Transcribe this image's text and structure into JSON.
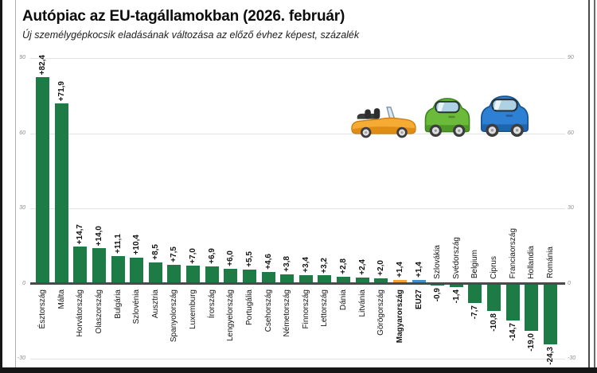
{
  "header": {
    "title": "Autópiac az EU-tagállamokban (2026. február)",
    "subtitle": "Új személygépkocsik eladásának változása az előző évhez képest, százalék"
  },
  "chart_data": {
    "type": "bar",
    "title": "Autópiac az EU-tagállamokban (2026. február)",
    "subtitle": "Új személygépkocsik eladásának változása az előző évhez képest, százalék",
    "unit": "%",
    "ylim": [
      -30,
      90
    ],
    "yticks": [
      90,
      60,
      30,
      0,
      -30
    ],
    "grid": true,
    "legend": "none",
    "categories": [
      "Észtország",
      "Málta",
      "Horvátország",
      "Olaszország",
      "Bulgária",
      "Szlovénia",
      "Ausztria",
      "Spanyolország",
      "Luxemburg",
      "Írország",
      "Lengyelország",
      "Portugália",
      "Csehország",
      "Németország",
      "Finnország",
      "Lettország",
      "Dánia",
      "Litvánia",
      "Görögország",
      "Magyarország",
      "EU27",
      "Szlovákia",
      "Svédország",
      "Belgium",
      "Ciprus",
      "Franciaország",
      "Hollandia",
      "Románia"
    ],
    "values": [
      82.4,
      71.9,
      14.7,
      14.0,
      11.1,
      10.4,
      8.5,
      7.5,
      7.0,
      6.9,
      6.0,
      5.5,
      4.6,
      3.8,
      3.4,
      3.2,
      2.8,
      2.4,
      2.0,
      1.4,
      1.4,
      -0.9,
      -1.4,
      -7.7,
      -10.8,
      -14.7,
      -19.0,
      -24.3
    ],
    "value_labels": [
      "+82,4",
      "+71,9",
      "+14,7",
      "+14,0",
      "+11,1",
      "+10,4",
      "+8,5",
      "+7,5",
      "+7,0",
      "+6,9",
      "+6,0",
      "+5,5",
      "+4,6",
      "+3,8",
      "+3,4",
      "+3,2",
      "+2,8",
      "+2,4",
      "+2,0",
      "+1,4",
      "+1,4",
      "-0,9",
      "-1,4",
      "-7,7",
      "-10,8",
      "-14,7",
      "-19,0",
      "-24,3"
    ],
    "default_color": "#1d7c46",
    "bar_colors": {
      "Magyarország": "#efa52f",
      "EU27": "#4190d0"
    },
    "bold_categories": [
      "Magyarország",
      "EU27"
    ]
  },
  "decor": {
    "cars": [
      {
        "name": "convertible-car-orange",
        "color": "#f6ab35",
        "accent": "#e08d16"
      },
      {
        "name": "hatchback-car-green",
        "color": "#6cba3a",
        "accent": "#4a9423"
      },
      {
        "name": "hatchback-car-blue",
        "color": "#2e80d4",
        "accent": "#1b5fa8"
      }
    ]
  }
}
